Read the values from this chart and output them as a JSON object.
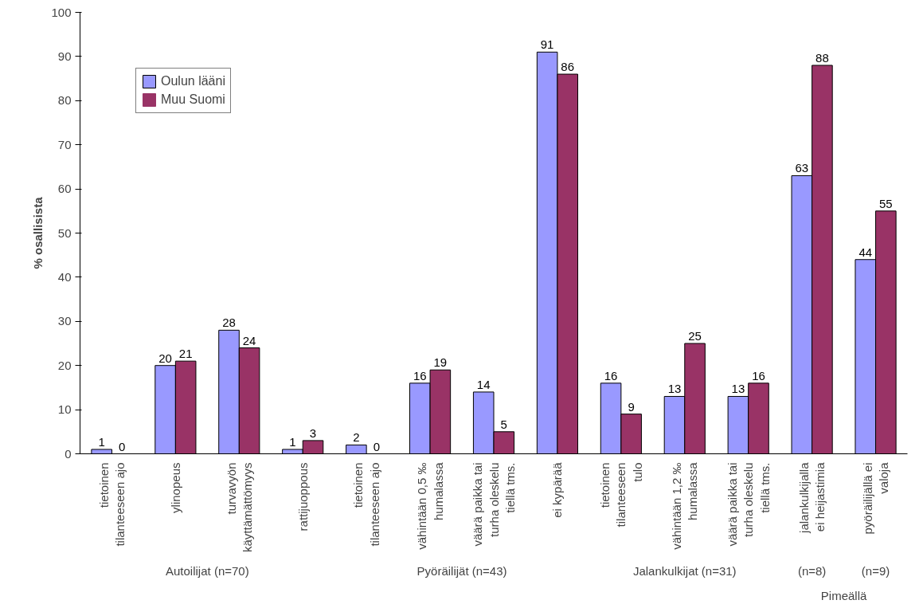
{
  "chart_data": {
    "type": "bar",
    "ylabel": "% osallisista",
    "categories": [
      "tietoinen tilanteeseen ajo",
      "ylinopeus",
      "turvavyön käyttämättömyys",
      "rattijuoppous",
      "tietoinen tilanteeseen ajo",
      "vähintään 0,5 ‰ humalassa",
      "väärä paikka tai turha oleskelu tiellä tms.",
      "ei kypärää",
      "tietoinen tilanteeseen tulo",
      "vähintään 1,2 ‰ humalassa",
      "väärä paikka tai turha oleskelu tiellä tms.",
      "jalankulkijalla ei heijastimia",
      "pyöräilijällä ei valoja"
    ],
    "series": [
      {
        "name": "Oulun lääni",
        "color": "#9999ff",
        "values": [
          1,
          20,
          28,
          1,
          2,
          16,
          14,
          91,
          16,
          13,
          13,
          63,
          44
        ]
      },
      {
        "name": "Muu Suomi",
        "color": "#993366",
        "values": [
          0,
          21,
          24,
          3,
          0,
          19,
          5,
          86,
          9,
          25,
          16,
          88,
          55
        ]
      }
    ],
    "ylim": [
      0,
      100
    ],
    "yticks": [
      0,
      10,
      20,
      30,
      40,
      50,
      60,
      70,
      80,
      90,
      100
    ],
    "data_labels": true,
    "legend": "top left",
    "grid": false,
    "annotations": [
      "Autoilijat (n=70)",
      "Pyöräilijät (n=43)",
      "Jalankulkijat (n=31)",
      "(n=8)",
      "(n=9)",
      "Pimeällä"
    ]
  }
}
